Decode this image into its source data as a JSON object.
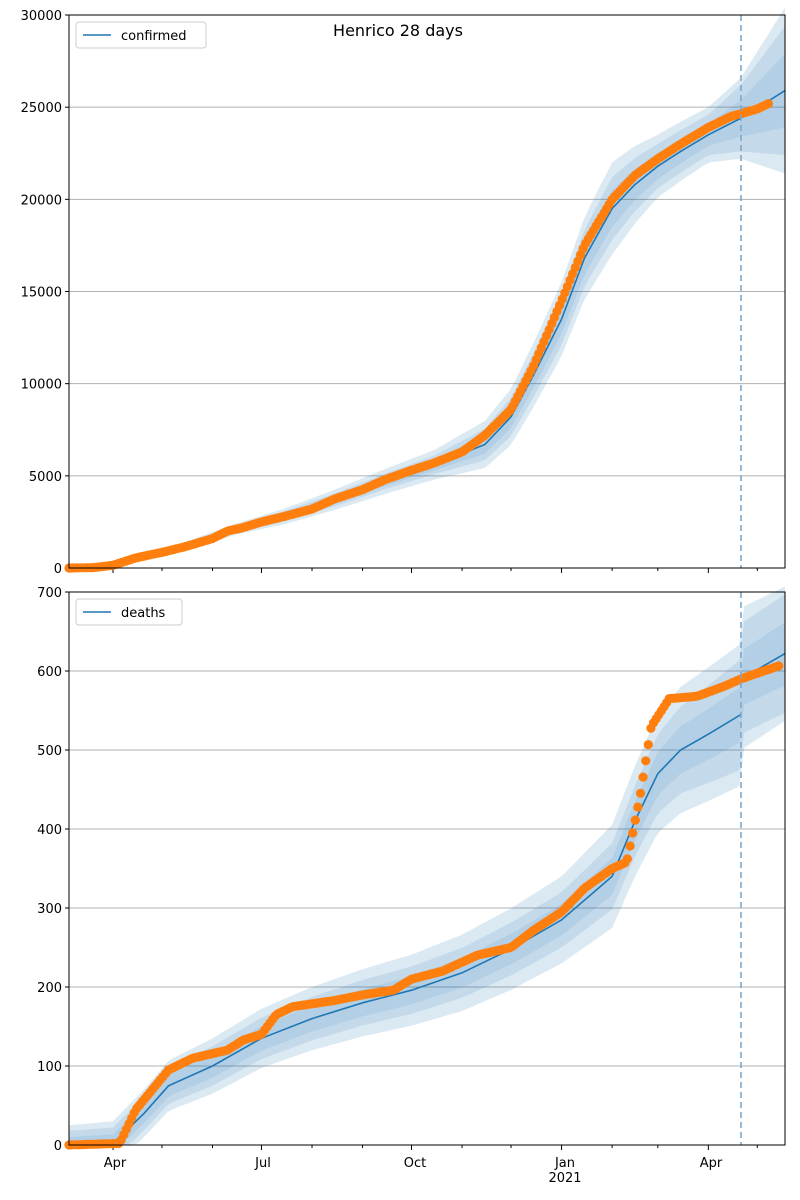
{
  "figure_title": "Henrico 28 days",
  "colors": {
    "model_line": "#1f77b4",
    "band": "#1f77b4",
    "observed": "#ff7f0e",
    "grid": "#b0b0b0",
    "divider": "#7fa7c9"
  },
  "shared_x_axis": {
    "ticks": [
      "Apr",
      "Jul",
      "Oct",
      "Jan",
      "Apr"
    ],
    "year_label": "2021",
    "range": [
      "2020-03-05",
      "2021-05-18"
    ],
    "forecast_start": "2021-04-21"
  },
  "chart_data": [
    {
      "type": "line",
      "series": [
        {
          "name": "confirmed",
          "kind": "model",
          "points": [
            [
              "2020-03-05",
              0
            ],
            [
              "2020-03-25",
              30
            ],
            [
              "2020-04-15",
              450
            ],
            [
              "2020-05-15",
              1200
            ],
            [
              "2020-06-15",
              2100
            ],
            [
              "2020-07-15",
              2800
            ],
            [
              "2020-08-15",
              3700
            ],
            [
              "2020-09-15",
              4700
            ],
            [
              "2020-10-15",
              5600
            ],
            [
              "2020-11-15",
              6700
            ],
            [
              "2020-12-01",
              8200
            ],
            [
              "2020-12-15",
              10500
            ],
            [
              "2021-01-01",
              13500
            ],
            [
              "2021-01-15",
              16800
            ],
            [
              "2021-02-01",
              19500
            ],
            [
              "2021-02-15",
              20800
            ],
            [
              "2021-03-01",
              21800
            ],
            [
              "2021-03-15",
              22600
            ],
            [
              "2021-04-01",
              23500
            ],
            [
              "2021-04-21",
              24400
            ],
            [
              "2021-05-18",
              25900
            ]
          ]
        },
        {
          "name": "observed",
          "kind": "scatter",
          "points": [
            [
              "2020-03-05",
              0
            ],
            [
              "2020-03-20",
              20
            ],
            [
              "2020-04-01",
              150
            ],
            [
              "2020-04-15",
              550
            ],
            [
              "2020-05-01",
              850
            ],
            [
              "2020-05-15",
              1150
            ],
            [
              "2020-06-01",
              1600
            ],
            [
              "2020-06-10",
              2000
            ],
            [
              "2020-06-20",
              2200
            ],
            [
              "2020-07-01",
              2500
            ],
            [
              "2020-07-15",
              2800
            ],
            [
              "2020-08-01",
              3200
            ],
            [
              "2020-08-15",
              3750
            ],
            [
              "2020-09-01",
              4250
            ],
            [
              "2020-09-15",
              4800
            ],
            [
              "2020-10-01",
              5300
            ],
            [
              "2020-10-15",
              5700
            ],
            [
              "2020-11-01",
              6300
            ],
            [
              "2020-11-15",
              7200
            ],
            [
              "2020-12-01",
              8600
            ],
            [
              "2020-12-15",
              11000
            ],
            [
              "2021-01-01",
              14500
            ],
            [
              "2021-01-15",
              17500
            ],
            [
              "2021-02-01",
              20000
            ],
            [
              "2021-02-15",
              21300
            ],
            [
              "2021-03-01",
              22200
            ],
            [
              "2021-03-15",
              23000
            ],
            [
              "2021-04-01",
              23900
            ],
            [
              "2021-04-15",
              24500
            ],
            [
              "2021-05-01",
              24900
            ],
            [
              "2021-05-08",
              25200
            ]
          ]
        }
      ],
      "ylim": [
        0,
        30000
      ],
      "yticks": [
        0,
        5000,
        10000,
        15000,
        20000,
        25000,
        30000
      ],
      "band_widths": [
        [
          0,
          0,
          0
        ],
        [
          100,
          200,
          300
        ],
        [
          300,
          500,
          800
        ],
        [
          800,
          1400,
          2000
        ],
        [
          1000,
          1700,
          2500
        ],
        [
          700,
          1200,
          1700
        ],
        [
          600,
          1100,
          1500
        ],
        [
          1000,
          1800,
          2200
        ],
        [
          2000,
          3500,
          4500
        ]
      ],
      "band_dates": [
        "2020-03-05",
        "2020-06-15",
        "2020-10-15",
        "2021-01-01",
        "2021-02-01",
        "2021-03-01",
        "2021-04-01",
        "2021-04-21",
        "2021-05-18"
      ],
      "legend": {
        "entries": [
          "confirmed"
        ],
        "position": "top-left"
      },
      "grid": "horizontal"
    },
    {
      "type": "line",
      "series": [
        {
          "name": "deaths",
          "kind": "model",
          "points": [
            [
              "2020-03-05",
              0
            ],
            [
              "2020-04-01",
              2
            ],
            [
              "2020-04-20",
              40
            ],
            [
              "2020-05-05",
              75
            ],
            [
              "2020-06-01",
              100
            ],
            [
              "2020-07-01",
              135
            ],
            [
              "2020-08-01",
              160
            ],
            [
              "2020-09-01",
              180
            ],
            [
              "2020-10-01",
              196
            ],
            [
              "2020-11-01",
              218
            ],
            [
              "2020-12-01",
              248
            ],
            [
              "2021-01-01",
              285
            ],
            [
              "2021-02-01",
              340
            ],
            [
              "2021-02-15",
              410
            ],
            [
              "2021-03-01",
              470
            ],
            [
              "2021-03-15",
              500
            ],
            [
              "2021-04-01",
              520
            ],
            [
              "2021-04-21",
              545
            ]
          ],
          "forecast_points": [
            [
              "2021-04-21",
              590
            ],
            [
              "2021-05-18",
              622
            ]
          ]
        },
        {
          "name": "observed",
          "kind": "scatter",
          "points": [
            [
              "2020-03-05",
              0
            ],
            [
              "2020-04-05",
              2
            ],
            [
              "2020-04-15",
              45
            ],
            [
              "2020-04-25",
              70
            ],
            [
              "2020-05-05",
              95
            ],
            [
              "2020-05-20",
              110
            ],
            [
              "2020-06-10",
              120
            ],
            [
              "2020-06-20",
              133
            ],
            [
              "2020-07-01",
              140
            ],
            [
              "2020-07-10",
              165
            ],
            [
              "2020-07-20",
              175
            ],
            [
              "2020-08-15",
              183
            ],
            [
              "2020-09-01",
              190
            ],
            [
              "2020-09-20",
              196
            ],
            [
              "2020-10-01",
              210
            ],
            [
              "2020-10-20",
              220
            ],
            [
              "2020-11-10",
              240
            ],
            [
              "2020-12-01",
              250
            ],
            [
              "2020-12-15",
              272
            ],
            [
              "2021-01-01",
              295
            ],
            [
              "2021-01-15",
              325
            ],
            [
              "2021-02-01",
              350
            ],
            [
              "2021-02-10",
              358
            ],
            [
              "2021-02-18",
              440
            ],
            [
              "2021-02-25",
              530
            ],
            [
              "2021-03-08",
              565
            ],
            [
              "2021-03-25",
              568
            ],
            [
              "2021-04-10",
              580
            ],
            [
              "2021-04-21",
              590
            ],
            [
              "2021-05-05",
              600
            ],
            [
              "2021-05-15",
              607
            ]
          ]
        }
      ],
      "ylim": [
        0,
        700
      ],
      "yticks": [
        0,
        100,
        200,
        300,
        400,
        500,
        600,
        700
      ],
      "band_widths": [
        [
          10,
          18,
          25
        ],
        [
          15,
          25,
          35
        ],
        [
          18,
          30,
          45
        ],
        [
          20,
          35,
          55
        ],
        [
          25,
          45,
          70
        ],
        [
          30,
          55,
          80
        ],
        [
          35,
          70,
          90
        ],
        [
          40,
          75,
          85
        ]
      ],
      "band_dates": [
        "2020-03-05",
        "2020-06-01",
        "2020-10-01",
        "2021-01-01",
        "2021-02-15",
        "2021-03-15",
        "2021-04-21",
        "2021-05-18"
      ],
      "legend": {
        "entries": [
          "deaths"
        ],
        "position": "top-left"
      },
      "grid": "horizontal"
    }
  ]
}
